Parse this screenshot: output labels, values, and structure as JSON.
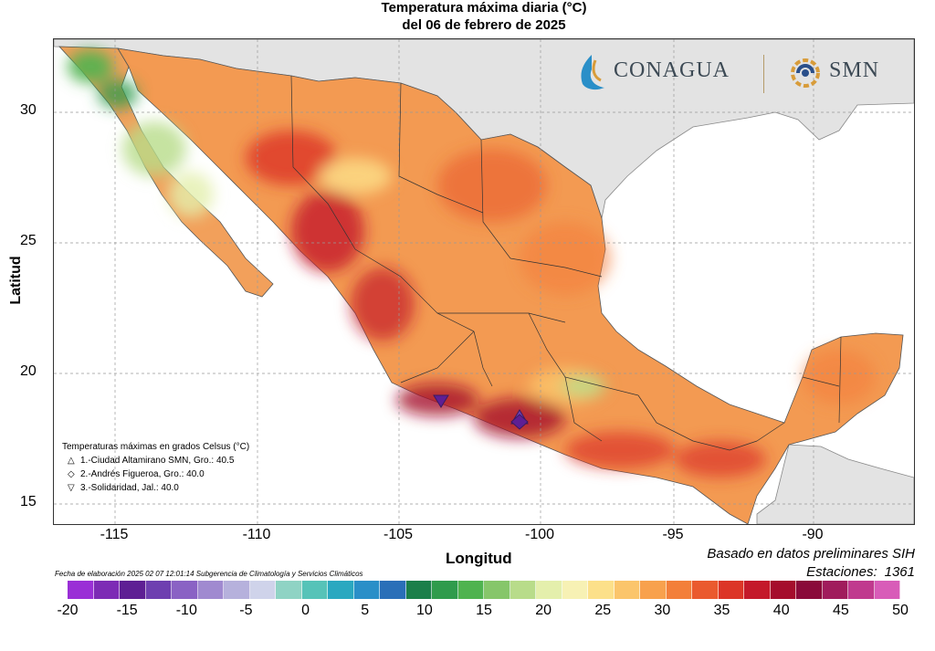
{
  "title": {
    "line1": "Temperatura máxima diaria (°C)",
    "line2": "del 06 de febrero de 2025"
  },
  "axes": {
    "xlabel": "Longitud",
    "ylabel": "Latitud",
    "xticks": [
      "-115",
      "-110",
      "-105",
      "-100",
      "-95",
      "-90"
    ],
    "yticks": [
      "30",
      "25",
      "20",
      "15"
    ],
    "xlim": [
      -117,
      -86.5
    ],
    "ylim": [
      14.5,
      32.8
    ]
  },
  "logos": {
    "conagua": "CONAGUA",
    "smn": "SMN"
  },
  "legend": {
    "title": "Temperaturas máximas en grados Celsus (°C)",
    "entries": [
      {
        "symbol": "△",
        "text": "1.-Ciudad Altamirano SMN, Gro.: 40.5"
      },
      {
        "symbol": "◇",
        "text": "2.-Andrés Figueroa, Gro.: 40.0"
      },
      {
        "symbol": "▽",
        "text": "3.-Solidaridad, Jal.: 40.0"
      }
    ]
  },
  "source": "Basado en datos preliminares SIH",
  "stations": {
    "label": "Estaciones:",
    "value": "1361"
  },
  "footnote": "Fecha de elaboración 2025 02 07 12:01:14 Subgerencia de Climatología y Servicios Climáticos",
  "colorbar": {
    "ticks": [
      "-20",
      "-15",
      "-10",
      "-5",
      "0",
      "5",
      "10",
      "15",
      "20",
      "25",
      "30",
      "35",
      "40",
      "45",
      "50"
    ],
    "colors": [
      "#9a2fd6",
      "#7d2bb5",
      "#5e1f94",
      "#6e3fb0",
      "#8a62c4",
      "#a08ad0",
      "#b6b1dc",
      "#cfd3ea",
      "#8fd3c4",
      "#56c3b8",
      "#2aa8c0",
      "#2a8fc8",
      "#2a6fb8",
      "#1b7f4a",
      "#2f9b4c",
      "#4fb34f",
      "#86c66a",
      "#b8dc8a",
      "#e4efac",
      "#f7f1b4",
      "#fce08a",
      "#fbc56b",
      "#f8a14d",
      "#f37f3a",
      "#ea5a2e",
      "#dc3527",
      "#c4192a",
      "#a50d2c",
      "#8a0a3a",
      "#a01c5c",
      "#c03a8e",
      "#d85cb8"
    ]
  },
  "overlay": {
    "land_color": "#f39a52",
    "sea_color": "#ffffff",
    "other_land_color": "#e3e3e3"
  }
}
